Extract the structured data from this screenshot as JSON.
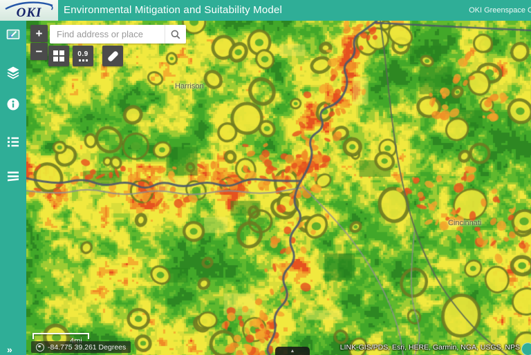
{
  "header": {
    "logo": "OKI",
    "title": "Environmental Mitigation and Suitability Model",
    "subtitle_right": "OKI Greenspace C"
  },
  "sidebar": {
    "icons": [
      "map-edit-widget",
      "layers",
      "info",
      "layer-list",
      "legend"
    ],
    "expand": "»"
  },
  "search": {
    "placeholder": "Find address or place",
    "icon": "magnifier"
  },
  "map_controls": {
    "zoom_in": "+",
    "zoom_out": "−",
    "basemap_icon": "grid-squares",
    "numeric_label": "0.9",
    "measure_icon": "ruler"
  },
  "map": {
    "labels": [
      {
        "text": "Harrison"
      },
      {
        "text": "Cincinnati"
      }
    ],
    "scalebar_label": "4mi",
    "coordinates": "-84.775 39.261 Degrees",
    "attribution": "LINK-GIS/PDS, Esri, HERE, Garmin, NGA, USGS, NPS",
    "table_toggle_icon": "caret-up",
    "palette": {
      "teal": "#2fae97",
      "greens": [
        "#2e8822",
        "#42a829",
        "#5fb92e",
        "#9ccc33"
      ],
      "yellows": [
        "#d9dd3a",
        "#f1e93e"
      ],
      "oranges": [
        "#f2b02e",
        "#ef8d26"
      ],
      "red": "#e5531f",
      "ring_outline": "#6e7b21",
      "ring_fill": "#ece53a",
      "river": "#4d5a68",
      "road": "#8e8e8e",
      "boundary": "#5a6a52"
    }
  }
}
